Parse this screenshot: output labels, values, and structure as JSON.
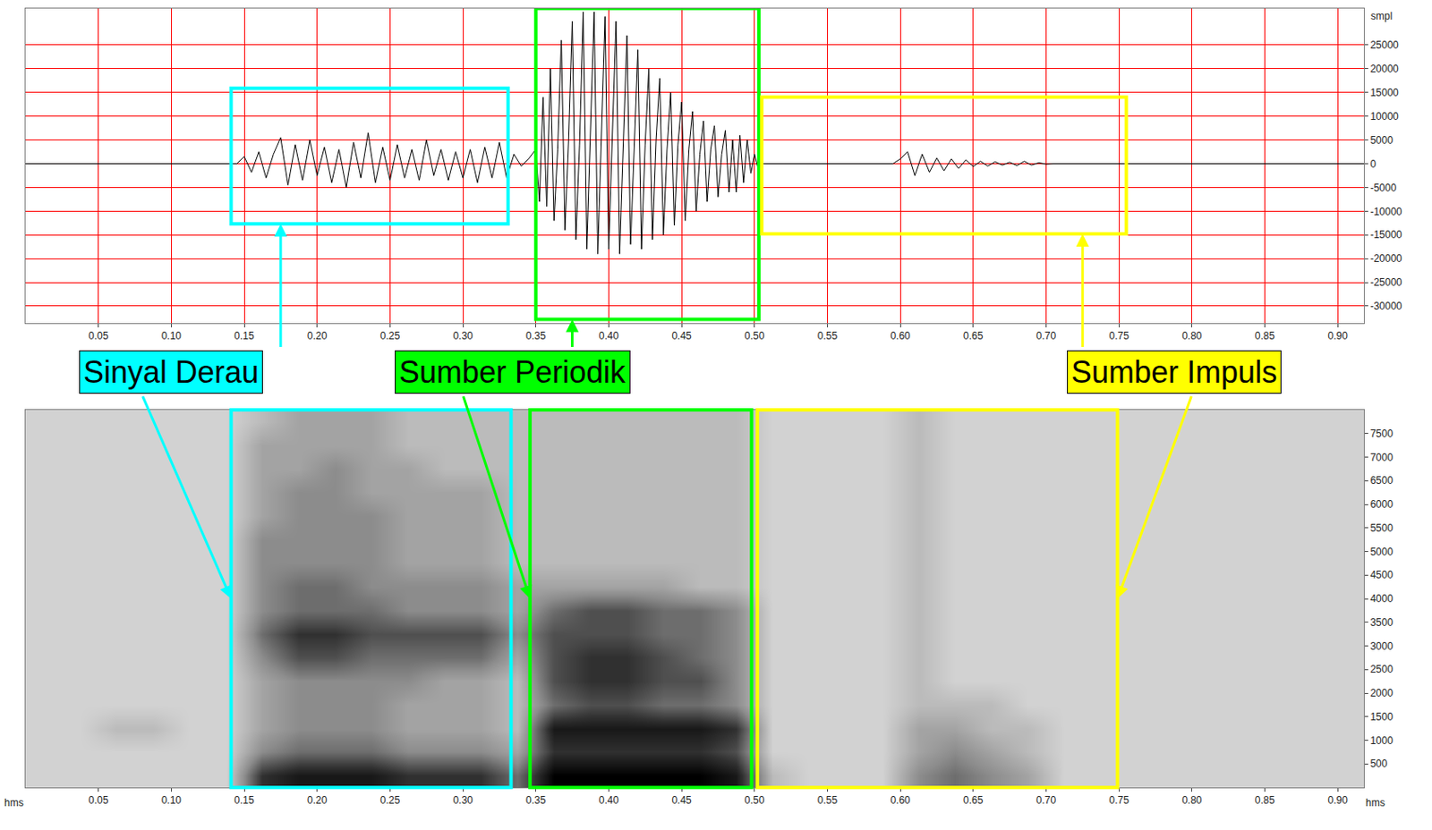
{
  "chart_data": [
    {
      "type": "line",
      "ylabel": "smpl",
      "color": "#000000",
      "x": [
        0,
        0.14,
        0.145,
        0.15,
        0.155,
        0.16,
        0.165,
        0.17,
        0.175,
        0.18,
        0.185,
        0.19,
        0.195,
        0.2,
        0.205,
        0.21,
        0.215,
        0.22,
        0.225,
        0.23,
        0.235,
        0.24,
        0.245,
        0.25,
        0.255,
        0.26,
        0.265,
        0.27,
        0.275,
        0.28,
        0.285,
        0.29,
        0.295,
        0.3,
        0.305,
        0.31,
        0.315,
        0.32,
        0.325,
        0.33,
        0.335,
        0.34,
        0.345,
        0.35,
        0.3525,
        0.355,
        0.3575,
        0.36,
        0.3625,
        0.365,
        0.3675,
        0.37,
        0.3725,
        0.375,
        0.3775,
        0.38,
        0.3825,
        0.385,
        0.3875,
        0.39,
        0.3925,
        0.395,
        0.3975,
        0.4,
        0.4025,
        0.405,
        0.4075,
        0.41,
        0.4125,
        0.415,
        0.4175,
        0.42,
        0.4225,
        0.425,
        0.4275,
        0.43,
        0.4325,
        0.435,
        0.4375,
        0.44,
        0.4425,
        0.445,
        0.4475,
        0.45,
        0.4525,
        0.455,
        0.4575,
        0.46,
        0.4625,
        0.465,
        0.4675,
        0.47,
        0.4725,
        0.475,
        0.4775,
        0.48,
        0.4825,
        0.485,
        0.4875,
        0.49,
        0.4925,
        0.495,
        0.4975,
        0.5,
        0.5025,
        0.505,
        0.52,
        0.595,
        0.6,
        0.605,
        0.61,
        0.615,
        0.62,
        0.625,
        0.63,
        0.635,
        0.64,
        0.645,
        0.65,
        0.655,
        0.66,
        0.665,
        0.67,
        0.675,
        0.68,
        0.685,
        0.69,
        0.695,
        0.7,
        0.705,
        0.918
      ],
      "values": [
        0,
        0,
        0,
        1500,
        -1800,
        2500,
        -3000,
        2000,
        5500,
        -4500,
        4000,
        -3500,
        5000,
        -2500,
        3500,
        -4000,
        3000,
        -5000,
        4500,
        -3000,
        6500,
        -4000,
        3500,
        -3500,
        4000,
        -3000,
        3000,
        -3500,
        5000,
        -2500,
        3000,
        -3500,
        2500,
        -3000,
        3000,
        -4000,
        3500,
        -3000,
        4500,
        -3000,
        2000,
        -500,
        1000,
        3000,
        -8000,
        14000,
        -9000,
        20000,
        -12000,
        3000,
        26000,
        -14000,
        5000,
        30000,
        -16000,
        4000,
        32000,
        -18000,
        6000,
        32000,
        -19000,
        5000,
        31000,
        -18000,
        7000,
        30000,
        -19000,
        6000,
        27000,
        -17000,
        5000,
        24000,
        -18000,
        4000,
        20000,
        -16000,
        5000,
        18000,
        -15000,
        3000,
        15000,
        -13000,
        4000,
        13000,
        -12000,
        3000,
        11000,
        -10000,
        2000,
        9000,
        -8000,
        3000,
        8000,
        -7000,
        2000,
        7000,
        -6000,
        5000,
        -6000,
        6000,
        -4000,
        5000,
        -2000,
        2000,
        -1000,
        0,
        0,
        0,
        1000,
        2500,
        -2500,
        2000,
        -1800,
        1200,
        -1500,
        1000,
        -1000,
        800,
        -600,
        500,
        -500,
        400,
        -300,
        300,
        -400,
        500,
        -300,
        200,
        -100,
        0,
        0
      ],
      "xlim": [
        0,
        0.918
      ],
      "xticks": [
        0.05,
        {
          "value": 0.1,
          "label": "0.10"
        },
        0.15,
        {
          "value": 0.2,
          "label": "0.20"
        },
        0.25,
        {
          "value": 0.3,
          "label": "0.30"
        },
        0.35,
        {
          "value": 0.4,
          "label": "0.40"
        },
        0.45,
        {
          "value": 0.5,
          "label": "0.50"
        },
        0.55,
        {
          "value": 0.6,
          "label": "0.60"
        },
        0.65,
        {
          "value": 0.7,
          "label": "0.70"
        },
        0.75,
        {
          "value": 0.8,
          "label": "0.80"
        },
        0.85,
        {
          "value": 0.9,
          "label": "0.90"
        }
      ],
      "ylim": [
        -33600,
        32700
      ],
      "yticks": [
        -30000,
        -25000,
        -20000,
        -15000,
        -10000,
        -5000,
        0,
        5000,
        10000,
        15000,
        20000,
        25000
      ],
      "grid": true,
      "regions": [
        {
          "label": "Sinyal Derau",
          "color": "#00ffff",
          "x": [
            0.141,
            0.331
          ],
          "y": [
            -12700,
            15900
          ]
        },
        {
          "label": "Sumber Periodik",
          "color": "#00ff00",
          "x": [
            0.35,
            0.503
          ],
          "y": [
            -32800,
            32700
          ]
        },
        {
          "label": "Sumber Impuls",
          "color": "#ffff00",
          "x": [
            0.505,
            0.755
          ],
          "y": [
            -14800,
            14000
          ]
        }
      ]
    },
    {
      "type": "heatmap",
      "xlabel": "hms",
      "x": [
        0.0125,
        0.0375,
        0.0625,
        0.0875,
        0.1125,
        0.1375,
        0.1625,
        0.1875,
        0.2125,
        0.2375,
        0.2625,
        0.2875,
        0.3125,
        0.3375,
        0.3625,
        0.3875,
        0.4125,
        0.4375,
        0.4625,
        0.4875,
        0.5125,
        0.5375,
        0.5625,
        0.5875,
        0.6125,
        0.6375,
        0.6625,
        0.6875,
        0.7125,
        0.7375,
        0.7625,
        0.7875,
        0.8125,
        0.8375,
        0.8625,
        0.8875,
        0.9125
      ],
      "y": [
        250,
        750,
        1250,
        1750,
        2250,
        2750,
        3250,
        3750,
        4250,
        4750,
        5250,
        5750,
        6250,
        6750,
        7250,
        7750
      ],
      "cells": [
        [
          2,
          2,
          2,
          2,
          2,
          2,
          8,
          9,
          9,
          9,
          8,
          8,
          8,
          6,
          10,
          10,
          10,
          10,
          10,
          9,
          3,
          2,
          2,
          2,
          5,
          6,
          5,
          4,
          2,
          2,
          2,
          2,
          2,
          2,
          2,
          2,
          2
        ],
        [
          2,
          2,
          2,
          2,
          2,
          2,
          5,
          6,
          6,
          6,
          5,
          5,
          5,
          4,
          8,
          8,
          8,
          8,
          8,
          7,
          2,
          2,
          2,
          2,
          4,
          5,
          4,
          3,
          2,
          2,
          2,
          2,
          2,
          2,
          2,
          2,
          2
        ],
        [
          2,
          2,
          3,
          3,
          2,
          2,
          4,
          5,
          5,
          5,
          4,
          4,
          4,
          3,
          9,
          9,
          9,
          9,
          9,
          8,
          2,
          2,
          2,
          2,
          4,
          4,
          3,
          3,
          2,
          2,
          2,
          2,
          2,
          2,
          2,
          2,
          2
        ],
        [
          2,
          2,
          2,
          2,
          2,
          2,
          4,
          5,
          5,
          5,
          4,
          4,
          4,
          3,
          6,
          7,
          7,
          6,
          6,
          5,
          2,
          2,
          2,
          2,
          3,
          3,
          3,
          2,
          2,
          2,
          2,
          2,
          2,
          2,
          2,
          2,
          2
        ],
        [
          2,
          2,
          2,
          2,
          2,
          2,
          4,
          5,
          5,
          5,
          5,
          4,
          4,
          3,
          7,
          8,
          8,
          7,
          7,
          5,
          2,
          2,
          2,
          2,
          3,
          2,
          2,
          2,
          2,
          2,
          2,
          2,
          2,
          2,
          2,
          2,
          2
        ],
        [
          2,
          2,
          2,
          2,
          2,
          2,
          5,
          7,
          7,
          6,
          6,
          6,
          6,
          4,
          7,
          8,
          8,
          7,
          6,
          5,
          2,
          2,
          2,
          2,
          3,
          2,
          2,
          2,
          2,
          2,
          2,
          2,
          2,
          2,
          2,
          2,
          2
        ],
        [
          2,
          2,
          2,
          2,
          2,
          2,
          6,
          8,
          8,
          7,
          7,
          7,
          7,
          5,
          7,
          7,
          7,
          6,
          6,
          5,
          2,
          2,
          2,
          2,
          3,
          2,
          2,
          2,
          2,
          2,
          2,
          2,
          2,
          2,
          2,
          2,
          2
        ],
        [
          2,
          2,
          2,
          2,
          2,
          2,
          5,
          6,
          6,
          6,
          5,
          5,
          5,
          4,
          6,
          7,
          7,
          6,
          6,
          5,
          2,
          2,
          2,
          2,
          3,
          2,
          2,
          2,
          2,
          2,
          2,
          2,
          2,
          2,
          2,
          2,
          2
        ],
        [
          2,
          2,
          2,
          2,
          2,
          2,
          5,
          6,
          6,
          5,
          5,
          5,
          5,
          4,
          4,
          4,
          4,
          4,
          3,
          3,
          2,
          2,
          2,
          2,
          3,
          2,
          2,
          2,
          2,
          2,
          2,
          2,
          2,
          2,
          2,
          2,
          2
        ],
        [
          2,
          2,
          2,
          2,
          2,
          2,
          5,
          5,
          5,
          5,
          4,
          4,
          4,
          3,
          3,
          3,
          3,
          3,
          3,
          3,
          2,
          2,
          2,
          2,
          3,
          2,
          2,
          2,
          2,
          2,
          2,
          2,
          2,
          2,
          2,
          2,
          2
        ],
        [
          2,
          2,
          2,
          2,
          2,
          2,
          5,
          5,
          5,
          5,
          4,
          4,
          4,
          3,
          3,
          3,
          3,
          3,
          3,
          3,
          2,
          2,
          2,
          2,
          3,
          2,
          2,
          2,
          2,
          2,
          2,
          2,
          2,
          2,
          2,
          2,
          2
        ],
        [
          2,
          2,
          2,
          2,
          2,
          2,
          4,
          5,
          5,
          5,
          4,
          4,
          4,
          3,
          3,
          3,
          3,
          3,
          3,
          3,
          2,
          2,
          2,
          2,
          3,
          2,
          2,
          2,
          2,
          2,
          2,
          2,
          2,
          2,
          2,
          2,
          2
        ],
        [
          2,
          2,
          2,
          2,
          2,
          2,
          4,
          5,
          5,
          4,
          4,
          4,
          4,
          3,
          3,
          3,
          3,
          3,
          3,
          3,
          2,
          2,
          2,
          2,
          3,
          2,
          2,
          2,
          2,
          2,
          2,
          2,
          2,
          2,
          2,
          2,
          2
        ],
        [
          2,
          2,
          2,
          2,
          2,
          2,
          4,
          4,
          5,
          4,
          4,
          3,
          3,
          3,
          3,
          3,
          3,
          3,
          3,
          3,
          2,
          2,
          2,
          2,
          3,
          2,
          2,
          2,
          2,
          2,
          2,
          2,
          2,
          2,
          2,
          2,
          2
        ],
        [
          2,
          2,
          2,
          2,
          2,
          2,
          4,
          4,
          4,
          4,
          3,
          3,
          3,
          3,
          3,
          3,
          3,
          3,
          3,
          3,
          2,
          2,
          2,
          2,
          3,
          2,
          2,
          2,
          2,
          2,
          2,
          2,
          2,
          2,
          2,
          2,
          2
        ],
        [
          2,
          2,
          2,
          2,
          2,
          2,
          3,
          4,
          4,
          4,
          3,
          3,
          3,
          3,
          3,
          3,
          3,
          3,
          3,
          3,
          2,
          2,
          2,
          2,
          3,
          2,
          2,
          2,
          2,
          2,
          2,
          2,
          2,
          2,
          2,
          2,
          2
        ]
      ],
      "zlim": [
        0,
        10
      ],
      "xlim": [
        0,
        0.918
      ],
      "xticks": [
        0.05,
        {
          "value": 0.1,
          "label": "0.10"
        },
        0.15,
        {
          "value": 0.2,
          "label": "0.20"
        },
        0.25,
        {
          "value": 0.3,
          "label": "0.30"
        },
        0.35,
        {
          "value": 0.4,
          "label": "0.40"
        },
        0.45,
        {
          "value": 0.5,
          "label": "0.50"
        },
        0.55,
        {
          "value": 0.6,
          "label": "0.60"
        },
        0.65,
        {
          "value": 0.7,
          "label": "0.70"
        },
        0.75,
        {
          "value": 0.8,
          "label": "0.80"
        },
        0.85,
        {
          "value": 0.9,
          "label": "0.90"
        }
      ],
      "ylim": [
        0,
        8000
      ],
      "yticks": [
        500,
        1000,
        1500,
        2000,
        2500,
        3000,
        3500,
        4000,
        4500,
        5000,
        5500,
        6000,
        6500,
        7000,
        7500
      ],
      "grid": false,
      "regions": [
        {
          "color": "#00ffff",
          "x": [
            0.141,
            0.333
          ]
        },
        {
          "color": "#00ff00",
          "x": [
            0.346,
            0.498
          ]
        },
        {
          "color": "#ffff00",
          "x": [
            0.502,
            0.749
          ]
        }
      ]
    }
  ]
}
